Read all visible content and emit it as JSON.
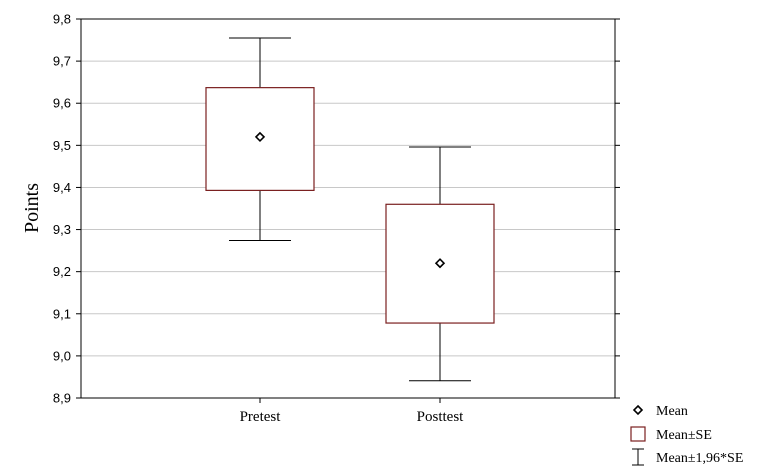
{
  "chart_data": {
    "type": "box",
    "ylabel": "Points",
    "xlabel": "",
    "ylim": [
      8.9,
      9.8
    ],
    "yticks": [
      "8,9",
      "9,0",
      "9,1",
      "9,2",
      "9,3",
      "9,4",
      "9,5",
      "9,6",
      "9,7",
      "9,8"
    ],
    "grid": true,
    "legend_position": "bottom-right",
    "categories": [
      "Pretest",
      "Posttest"
    ],
    "series": [
      {
        "name": "Pretest",
        "mean": 9.52,
        "se_low": 9.393,
        "se_high": 9.637,
        "ci_low": 9.274,
        "ci_high": 9.755
      },
      {
        "name": "Posttest",
        "mean": 9.22,
        "se_low": 9.078,
        "se_high": 9.36,
        "ci_low": 8.941,
        "ci_high": 9.496
      }
    ],
    "legend": [
      {
        "symbol": "diamond",
        "label": "Mean"
      },
      {
        "symbol": "box",
        "label": "Mean±SE"
      },
      {
        "symbol": "whisker",
        "label": "Mean±1,96*SE"
      }
    ],
    "colors": {
      "box_edge": "#7a1f1f",
      "whisker": "#000000",
      "grid": "#c8c8c8",
      "frame": "#000000"
    }
  }
}
